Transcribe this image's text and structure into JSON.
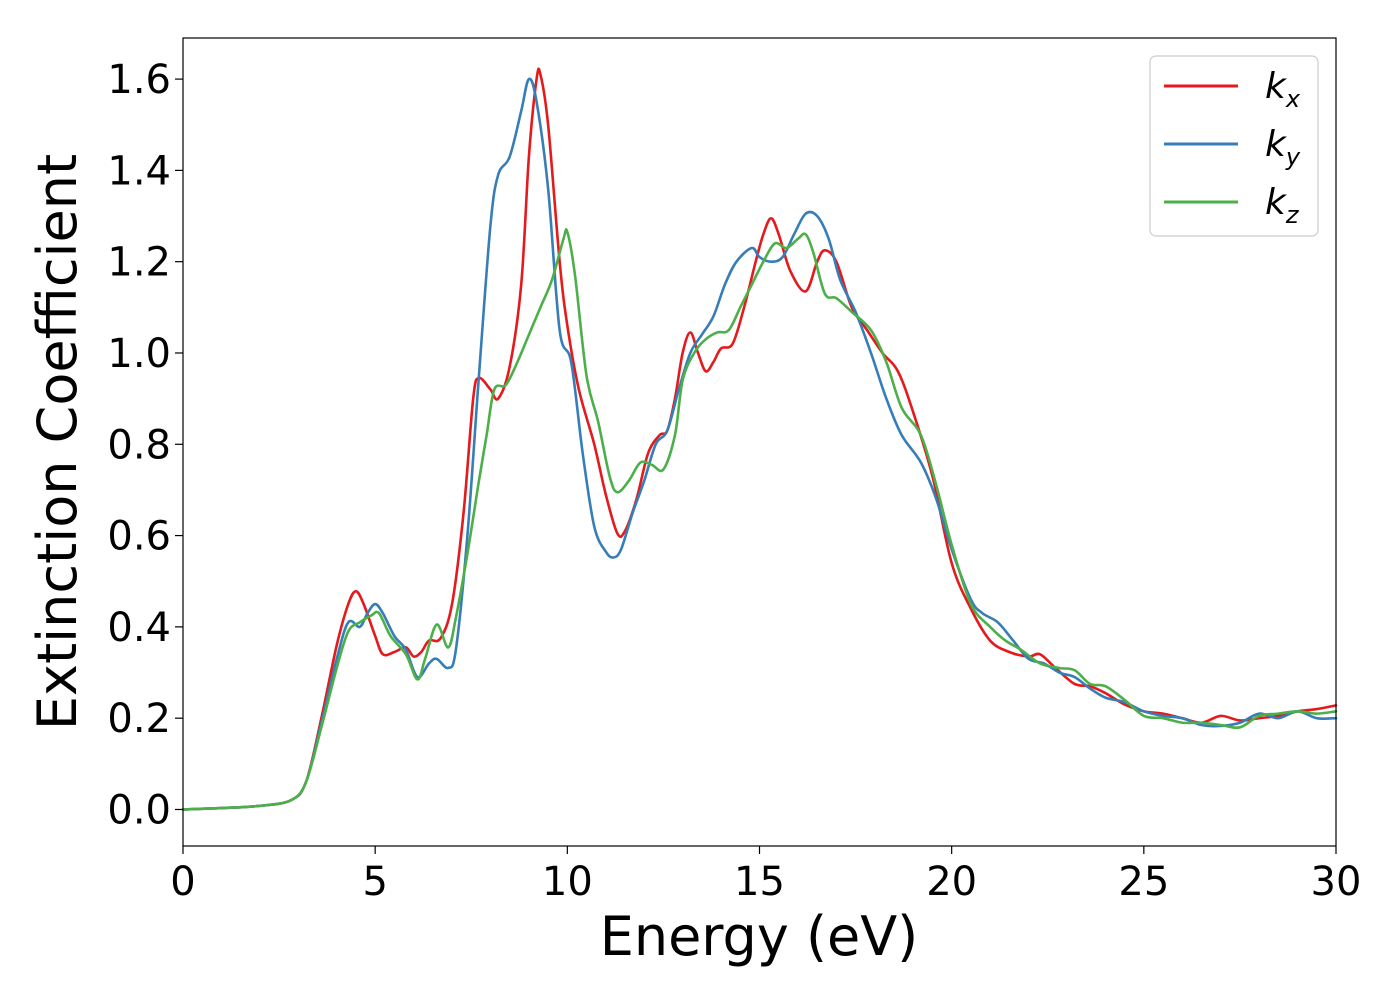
{
  "chart_data": {
    "type": "line",
    "xlabel": "Energy (eV)",
    "ylabel": "Extinction Coefficient",
    "xlim": [
      0,
      30
    ],
    "ylim": [
      -0.08,
      1.69
    ],
    "xticks": [
      0,
      5,
      10,
      15,
      20,
      25,
      30
    ],
    "xtick_labels": [
      "0",
      "5",
      "10",
      "15",
      "20",
      "25",
      "30"
    ],
    "yticks": [
      0.0,
      0.2,
      0.4,
      0.6,
      0.8,
      1.0,
      1.2,
      1.4,
      1.6
    ],
    "ytick_labels": [
      "0.0",
      "0.2",
      "0.4",
      "0.6",
      "0.8",
      "1.0",
      "1.2",
      "1.4",
      "1.6"
    ],
    "grid": false,
    "legend_position": "top-right",
    "series": [
      {
        "name": "k_x",
        "label_main": "k",
        "label_sub": "x",
        "color": "#e41a1c",
        "points": [
          [
            0,
            0.0
          ],
          [
            1,
            0.003
          ],
          [
            2,
            0.008
          ],
          [
            2.8,
            0.02
          ],
          [
            3.2,
            0.06
          ],
          [
            3.6,
            0.2
          ],
          [
            4.0,
            0.36
          ],
          [
            4.3,
            0.45
          ],
          [
            4.5,
            0.478
          ],
          [
            4.7,
            0.45
          ],
          [
            5.0,
            0.38
          ],
          [
            5.2,
            0.34
          ],
          [
            5.5,
            0.345
          ],
          [
            5.8,
            0.355
          ],
          [
            6.0,
            0.335
          ],
          [
            6.2,
            0.345
          ],
          [
            6.4,
            0.37
          ],
          [
            6.7,
            0.375
          ],
          [
            7.0,
            0.45
          ],
          [
            7.3,
            0.65
          ],
          [
            7.55,
            0.9
          ],
          [
            7.7,
            0.945
          ],
          [
            8.0,
            0.92
          ],
          [
            8.2,
            0.9
          ],
          [
            8.5,
            0.97
          ],
          [
            8.8,
            1.15
          ],
          [
            9.0,
            1.43
          ],
          [
            9.2,
            1.6
          ],
          [
            9.3,
            1.61
          ],
          [
            9.5,
            1.5
          ],
          [
            9.8,
            1.2
          ],
          [
            10.0,
            1.06
          ],
          [
            10.3,
            0.92
          ],
          [
            10.7,
            0.8
          ],
          [
            11.0,
            0.69
          ],
          [
            11.3,
            0.605
          ],
          [
            11.5,
            0.61
          ],
          [
            11.8,
            0.68
          ],
          [
            12.1,
            0.78
          ],
          [
            12.4,
            0.82
          ],
          [
            12.6,
            0.83
          ],
          [
            12.8,
            0.9
          ],
          [
            13.0,
            1.0
          ],
          [
            13.2,
            1.045
          ],
          [
            13.4,
            1.0
          ],
          [
            13.6,
            0.96
          ],
          [
            13.8,
            0.98
          ],
          [
            14.0,
            1.01
          ],
          [
            14.3,
            1.02
          ],
          [
            14.6,
            1.1
          ],
          [
            14.9,
            1.2
          ],
          [
            15.1,
            1.26
          ],
          [
            15.3,
            1.295
          ],
          [
            15.5,
            1.26
          ],
          [
            15.8,
            1.18
          ],
          [
            16.2,
            1.135
          ],
          [
            16.5,
            1.2
          ],
          [
            16.7,
            1.225
          ],
          [
            17.0,
            1.2
          ],
          [
            17.4,
            1.1
          ],
          [
            17.8,
            1.05
          ],
          [
            18.2,
            1.0
          ],
          [
            18.6,
            0.96
          ],
          [
            19.0,
            0.87
          ],
          [
            19.5,
            0.73
          ],
          [
            20.0,
            0.54
          ],
          [
            20.5,
            0.44
          ],
          [
            21.0,
            0.37
          ],
          [
            21.5,
            0.345
          ],
          [
            22.0,
            0.335
          ],
          [
            22.3,
            0.34
          ],
          [
            22.7,
            0.31
          ],
          [
            23.2,
            0.275
          ],
          [
            23.6,
            0.27
          ],
          [
            24.0,
            0.255
          ],
          [
            24.5,
            0.23
          ],
          [
            25.0,
            0.215
          ],
          [
            25.5,
            0.21
          ],
          [
            26.0,
            0.2
          ],
          [
            26.5,
            0.19
          ],
          [
            27.0,
            0.205
          ],
          [
            27.5,
            0.195
          ],
          [
            28.0,
            0.2
          ],
          [
            28.5,
            0.205
          ],
          [
            29.0,
            0.215
          ],
          [
            29.5,
            0.22
          ],
          [
            30.0,
            0.228
          ]
        ]
      },
      {
        "name": "k_y",
        "label_main": "k",
        "label_sub": "y",
        "color": "#377eb8",
        "points": [
          [
            0,
            0.0
          ],
          [
            1,
            0.003
          ],
          [
            2,
            0.008
          ],
          [
            2.8,
            0.02
          ],
          [
            3.2,
            0.06
          ],
          [
            3.6,
            0.19
          ],
          [
            4.0,
            0.33
          ],
          [
            4.3,
            0.41
          ],
          [
            4.6,
            0.4
          ],
          [
            4.8,
            0.43
          ],
          [
            5.0,
            0.45
          ],
          [
            5.2,
            0.43
          ],
          [
            5.5,
            0.38
          ],
          [
            5.8,
            0.35
          ],
          [
            6.1,
            0.29
          ],
          [
            6.4,
            0.32
          ],
          [
            6.6,
            0.33
          ],
          [
            6.9,
            0.31
          ],
          [
            7.1,
            0.35
          ],
          [
            7.4,
            0.6
          ],
          [
            7.7,
            0.95
          ],
          [
            8.0,
            1.28
          ],
          [
            8.2,
            1.39
          ],
          [
            8.5,
            1.43
          ],
          [
            8.8,
            1.53
          ],
          [
            9.0,
            1.6
          ],
          [
            9.2,
            1.55
          ],
          [
            9.5,
            1.36
          ],
          [
            9.8,
            1.05
          ],
          [
            10.1,
            0.98
          ],
          [
            10.4,
            0.78
          ],
          [
            10.7,
            0.62
          ],
          [
            11.0,
            0.565
          ],
          [
            11.2,
            0.552
          ],
          [
            11.4,
            0.57
          ],
          [
            11.7,
            0.65
          ],
          [
            12.0,
            0.72
          ],
          [
            12.3,
            0.8
          ],
          [
            12.6,
            0.83
          ],
          [
            12.9,
            0.92
          ],
          [
            13.2,
            1.0
          ],
          [
            13.5,
            1.04
          ],
          [
            13.8,
            1.08
          ],
          [
            14.1,
            1.15
          ],
          [
            14.4,
            1.2
          ],
          [
            14.8,
            1.23
          ],
          [
            15.0,
            1.21
          ],
          [
            15.3,
            1.2
          ],
          [
            15.6,
            1.21
          ],
          [
            15.9,
            1.26
          ],
          [
            16.2,
            1.305
          ],
          [
            16.5,
            1.3
          ],
          [
            16.8,
            1.25
          ],
          [
            17.1,
            1.16
          ],
          [
            17.5,
            1.09
          ],
          [
            17.9,
            1.0
          ],
          [
            18.3,
            0.9
          ],
          [
            18.7,
            0.82
          ],
          [
            19.2,
            0.76
          ],
          [
            19.6,
            0.68
          ],
          [
            20.0,
            0.57
          ],
          [
            20.5,
            0.46
          ],
          [
            20.8,
            0.43
          ],
          [
            21.2,
            0.41
          ],
          [
            21.6,
            0.37
          ],
          [
            22.0,
            0.33
          ],
          [
            22.4,
            0.32
          ],
          [
            22.8,
            0.3
          ],
          [
            23.2,
            0.29
          ],
          [
            23.6,
            0.265
          ],
          [
            24.0,
            0.245
          ],
          [
            24.5,
            0.235
          ],
          [
            25.0,
            0.215
          ],
          [
            25.5,
            0.205
          ],
          [
            26.0,
            0.2
          ],
          [
            26.5,
            0.185
          ],
          [
            27.0,
            0.183
          ],
          [
            27.5,
            0.19
          ],
          [
            28.0,
            0.21
          ],
          [
            28.5,
            0.2
          ],
          [
            29.0,
            0.215
          ],
          [
            29.5,
            0.2
          ],
          [
            30.0,
            0.2
          ]
        ]
      },
      {
        "name": "k_z",
        "label_main": "k",
        "label_sub": "z",
        "color": "#4daf4a",
        "points": [
          [
            0,
            0.0
          ],
          [
            1,
            0.003
          ],
          [
            2,
            0.008
          ],
          [
            2.8,
            0.02
          ],
          [
            3.2,
            0.06
          ],
          [
            3.6,
            0.18
          ],
          [
            4.0,
            0.31
          ],
          [
            4.3,
            0.39
          ],
          [
            4.6,
            0.41
          ],
          [
            4.9,
            0.425
          ],
          [
            5.1,
            0.43
          ],
          [
            5.4,
            0.38
          ],
          [
            5.8,
            0.34
          ],
          [
            6.1,
            0.285
          ],
          [
            6.3,
            0.33
          ],
          [
            6.6,
            0.405
          ],
          [
            6.9,
            0.355
          ],
          [
            7.1,
            0.42
          ],
          [
            7.4,
            0.56
          ],
          [
            7.7,
            0.72
          ],
          [
            7.9,
            0.82
          ],
          [
            8.1,
            0.92
          ],
          [
            8.4,
            0.93
          ],
          [
            8.7,
            0.98
          ],
          [
            9.0,
            1.04
          ],
          [
            9.3,
            1.1
          ],
          [
            9.6,
            1.16
          ],
          [
            9.9,
            1.25
          ],
          [
            10.0,
            1.265
          ],
          [
            10.2,
            1.17
          ],
          [
            10.5,
            0.95
          ],
          [
            10.8,
            0.85
          ],
          [
            11.1,
            0.73
          ],
          [
            11.3,
            0.695
          ],
          [
            11.6,
            0.72
          ],
          [
            11.9,
            0.76
          ],
          [
            12.2,
            0.755
          ],
          [
            12.5,
            0.745
          ],
          [
            12.8,
            0.82
          ],
          [
            13.0,
            0.94
          ],
          [
            13.3,
            1.0
          ],
          [
            13.6,
            1.03
          ],
          [
            13.9,
            1.045
          ],
          [
            14.2,
            1.05
          ],
          [
            14.5,
            1.1
          ],
          [
            14.8,
            1.15
          ],
          [
            15.1,
            1.2
          ],
          [
            15.4,
            1.24
          ],
          [
            15.7,
            1.23
          ],
          [
            16.0,
            1.25
          ],
          [
            16.2,
            1.26
          ],
          [
            16.4,
            1.22
          ],
          [
            16.7,
            1.13
          ],
          [
            17.0,
            1.12
          ],
          [
            17.4,
            1.09
          ],
          [
            17.9,
            1.05
          ],
          [
            18.3,
            0.98
          ],
          [
            18.7,
            0.88
          ],
          [
            19.2,
            0.82
          ],
          [
            19.6,
            0.71
          ],
          [
            20.0,
            0.58
          ],
          [
            20.5,
            0.45
          ],
          [
            21.0,
            0.4
          ],
          [
            21.4,
            0.37
          ],
          [
            21.8,
            0.35
          ],
          [
            22.3,
            0.32
          ],
          [
            22.8,
            0.31
          ],
          [
            23.2,
            0.305
          ],
          [
            23.6,
            0.275
          ],
          [
            24.0,
            0.27
          ],
          [
            24.5,
            0.24
          ],
          [
            25.0,
            0.205
          ],
          [
            25.5,
            0.2
          ],
          [
            26.0,
            0.19
          ],
          [
            26.5,
            0.19
          ],
          [
            27.0,
            0.185
          ],
          [
            27.5,
            0.18
          ],
          [
            28.0,
            0.205
          ],
          [
            28.5,
            0.21
          ],
          [
            29.0,
            0.215
          ],
          [
            29.5,
            0.21
          ],
          [
            30.0,
            0.215
          ]
        ]
      }
    ]
  }
}
